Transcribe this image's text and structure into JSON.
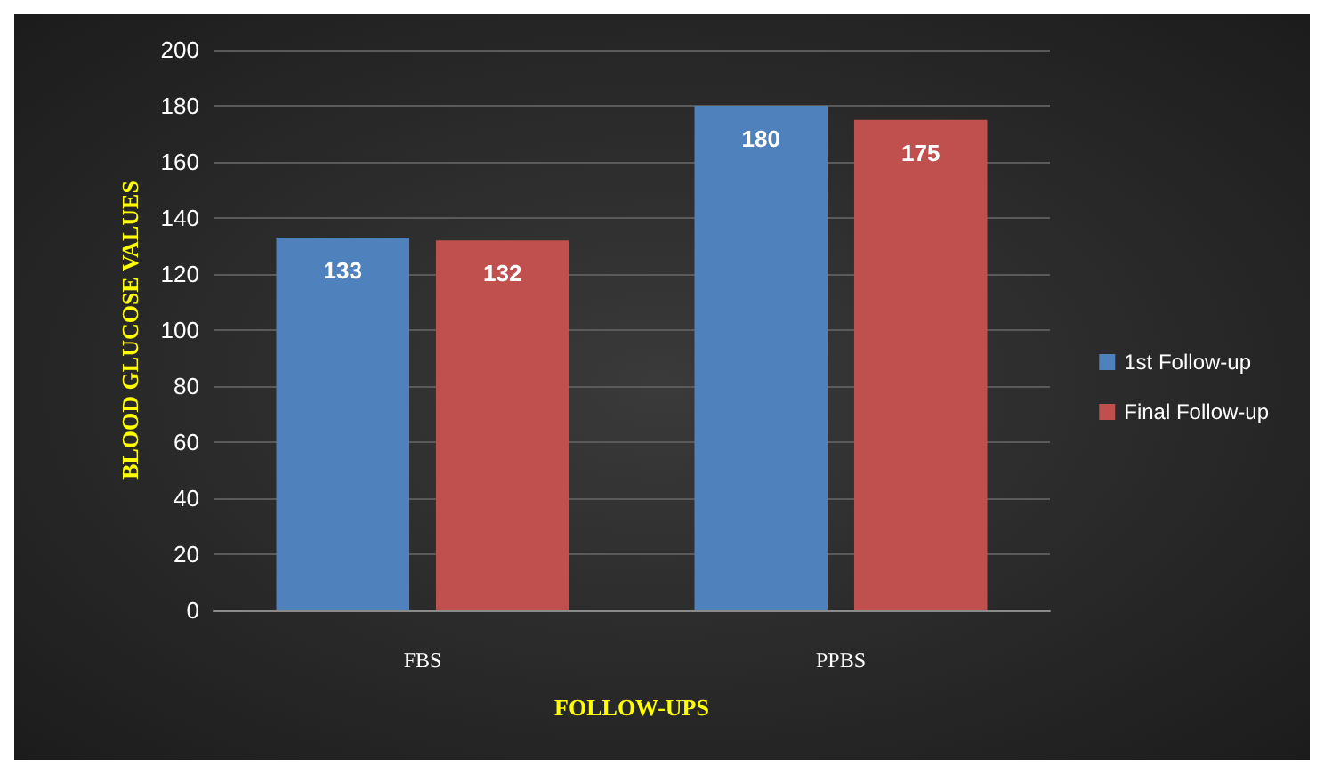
{
  "chart_data": {
    "type": "bar",
    "xlabel": "FOLLOW-UPS",
    "ylabel": "BLOOD GLUCOSE VALUES",
    "categories": [
      "FBS",
      "PPBS"
    ],
    "series": [
      {
        "name": "1st Follow-up",
        "color": "#4f81bd",
        "values": [
          133,
          180
        ]
      },
      {
        "name": "Final Follow-up",
        "color": "#c0504d",
        "values": [
          132,
          175
        ]
      }
    ],
    "ylim": [
      0,
      200
    ],
    "yticks": [
      0,
      20,
      40,
      60,
      80,
      100,
      120,
      140,
      160,
      180,
      200
    ],
    "grid": "y",
    "legend": "right",
    "data_labels": true
  }
}
